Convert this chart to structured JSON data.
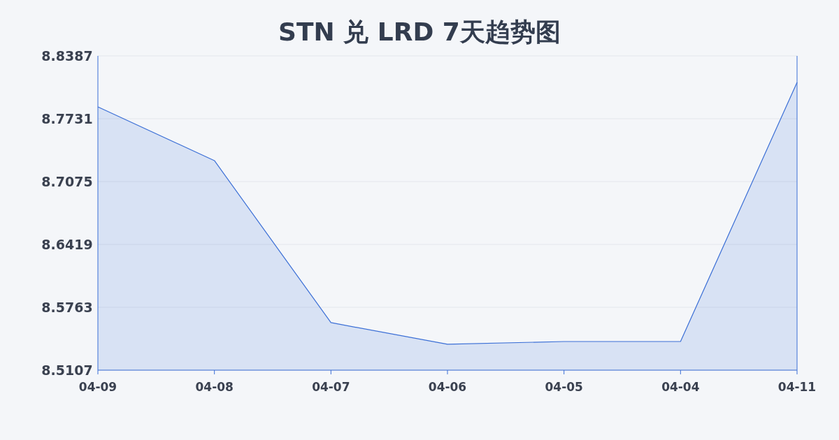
{
  "chart_data": {
    "type": "area",
    "title": "STN 兑 LRD 7天趋势图",
    "categories": [
      "04-09",
      "04-08",
      "04-07",
      "04-06",
      "04-05",
      "04-04",
      "04-11"
    ],
    "values": [
      8.7855,
      8.7294,
      8.5603,
      8.5377,
      8.5406,
      8.5406,
      8.811
    ],
    "color": "#3b6fd6",
    "ylim": [
      8.5107,
      8.8387
    ],
    "yticks": [
      8.5107,
      8.5763,
      8.6419,
      8.7075,
      8.7731,
      8.8387
    ],
    "grid": "y"
  }
}
